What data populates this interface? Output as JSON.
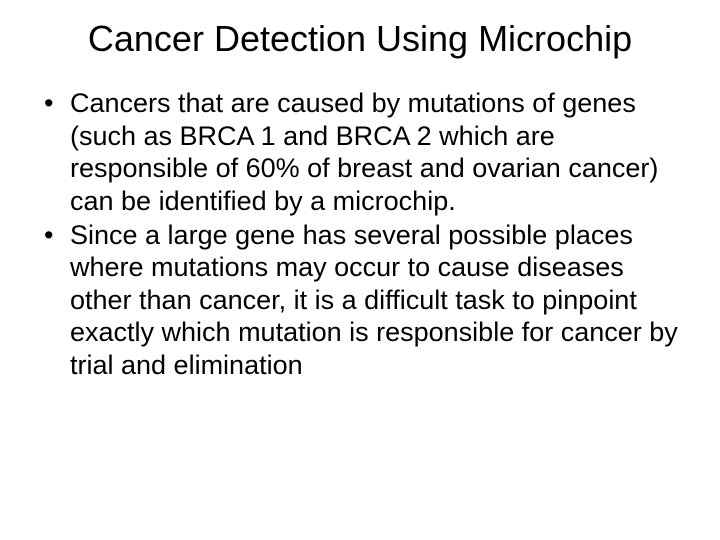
{
  "slide": {
    "title": "Cancer Detection Using Microchip",
    "bullets": [
      "Cancers that are caused by mutations of genes (such as BRCA 1 and BRCA 2 which are responsible of 60% of breast and ovarian cancer) can be identified by a microchip.",
      "Since a large gene has several possible places where mutations may occur to cause diseases other than cancer, it is a difficult task to pinpoint exactly which mutation is responsible for cancer by trial and elimination"
    ]
  },
  "styles": {
    "background_color": "#ffffff",
    "text_color": "#000000",
    "title_fontsize": 36,
    "body_fontsize": 27,
    "font_family": "Arial"
  }
}
